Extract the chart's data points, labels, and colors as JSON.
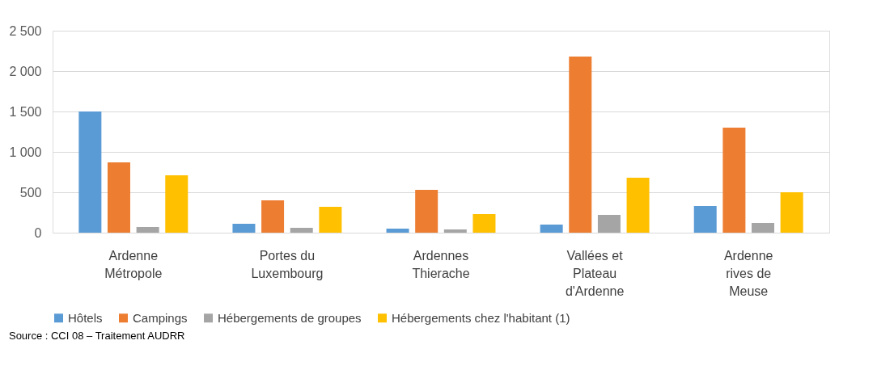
{
  "chart_data": {
    "type": "bar",
    "categories": [
      "Ardenne Métropole",
      "Portes du Luxembourg",
      "Ardennes Thierache",
      "Vallées et Plateau d'Ardenne",
      "Ardenne rives de Meuse"
    ],
    "series": [
      {
        "name": "Hôtels",
        "color": "#5b9bd5",
        "values": [
          1500,
          110,
          50,
          100,
          330
        ]
      },
      {
        "name": "Campings",
        "color": "#ed7d31",
        "values": [
          870,
          400,
          530,
          2180,
          1300
        ]
      },
      {
        "name": "Hébergements de groupes",
        "color": "#a5a5a5",
        "values": [
          70,
          60,
          40,
          220,
          120
        ]
      },
      {
        "name": "Hébergements chez l'habitant (1)",
        "color": "#ffc000",
        "values": [
          710,
          320,
          230,
          680,
          500
        ]
      }
    ],
    "ylim": [
      0,
      2500
    ],
    "yticks": [
      0,
      {
        "value": 500,
        "label": "500"
      },
      {
        "value": 1000,
        "label": "1 000"
      },
      {
        "value": 1500,
        "label": "1 500"
      },
      {
        "value": 2000,
        "label": "2 000"
      },
      {
        "value": 2500,
        "label": "2 500"
      }
    ],
    "grid": "y",
    "legend": "bottom",
    "annotations": [
      "Source : CCI 08 – Traitement AUDRR"
    ]
  }
}
